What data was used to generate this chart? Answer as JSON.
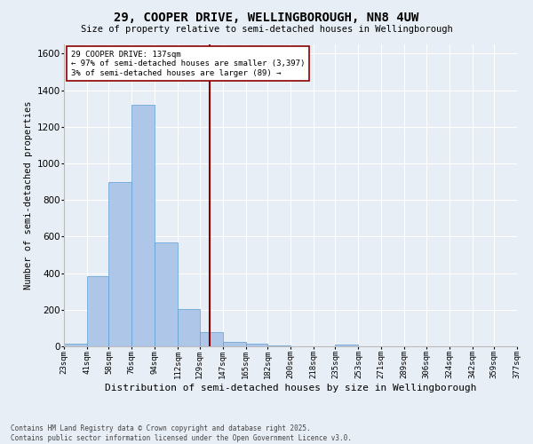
{
  "title": "29, COOPER DRIVE, WELLINGBOROUGH, NN8 4UW",
  "subtitle": "Size of property relative to semi-detached houses in Wellingborough",
  "xlabel": "Distribution of semi-detached houses by size in Wellingborough",
  "ylabel": "Number of semi-detached properties",
  "bar_color": "#aec6e8",
  "bar_edge_color": "#5a9fd4",
  "bg_color": "#e8eef5",
  "grid_color": "#ffffff",
  "vline_color": "#8b0000",
  "vline_x": 137,
  "annotation_title": "29 COOPER DRIVE: 137sqm",
  "annotation_line1": "← 97% of semi-detached houses are smaller (3,397)",
  "annotation_line2": "3% of semi-detached houses are larger (89) →",
  "footnote1": "Contains HM Land Registry data © Crown copyright and database right 2025.",
  "footnote2": "Contains public sector information licensed under the Open Government Licence v3.0.",
  "bin_edges": [
    23,
    41,
    58,
    76,
    94,
    112,
    129,
    147,
    165,
    182,
    200,
    218,
    235,
    253,
    271,
    289,
    306,
    324,
    342,
    359,
    377
  ],
  "bin_labels": [
    "23sqm",
    "41sqm",
    "58sqm",
    "76sqm",
    "94sqm",
    "112sqm",
    "129sqm",
    "147sqm",
    "165sqm",
    "182sqm",
    "200sqm",
    "218sqm",
    "235sqm",
    "253sqm",
    "271sqm",
    "289sqm",
    "306sqm",
    "324sqm",
    "342sqm",
    "359sqm",
    "377sqm"
  ],
  "counts": [
    15,
    385,
    900,
    1320,
    570,
    205,
    80,
    25,
    15,
    5,
    0,
    0,
    10,
    0,
    0,
    0,
    0,
    0,
    0,
    0
  ],
  "ylim": [
    0,
    1650
  ],
  "yticks": [
    0,
    200,
    400,
    600,
    800,
    1000,
    1200,
    1400,
    1600
  ]
}
